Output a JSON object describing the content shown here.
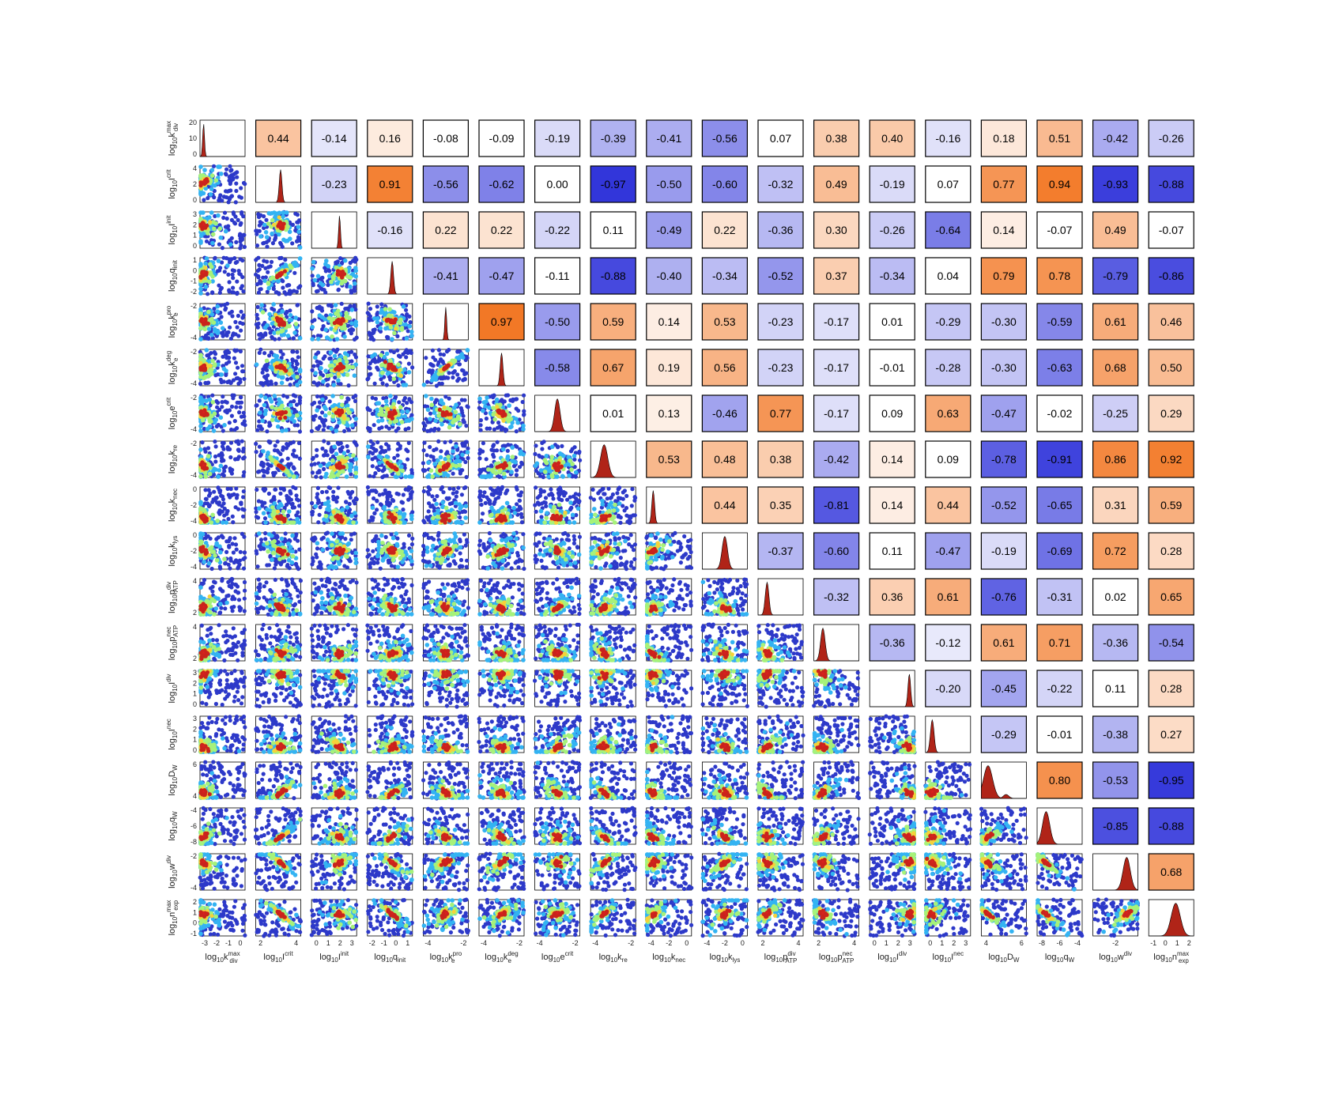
{
  "chart_data": {
    "type": "scatter",
    "title": "",
    "figure_kind": "corner plot: lower triangle = posterior scatter samples, diagonal = marginal density, upper triangle = correlation coefficient",
    "grid": false,
    "parameters": [
      {
        "base": "log",
        "sub": "10",
        "var": "k",
        "sup": "max",
        "sub2": "div",
        "ticks": [
          "-3",
          "-2",
          "-1",
          "0"
        ],
        "yticks": [
          "0",
          "10",
          "20"
        ],
        "range": [
          -3.5,
          0.3
        ],
        "yrange": [
          0,
          20
        ]
      },
      {
        "base": "log",
        "sub": "10",
        "var": "I",
        "sup": "crit",
        "sub2": "",
        "ticks": [
          "2",
          "4"
        ],
        "yticks": [
          "0",
          "2",
          "4"
        ],
        "range": [
          0,
          4.5
        ],
        "yrange": [
          0,
          4
        ]
      },
      {
        "base": "log",
        "sub": "10",
        "var": "I",
        "sup": "init",
        "sub2": "",
        "ticks": [
          "0",
          "1",
          "2",
          "3"
        ],
        "yticks": [
          "0",
          "1",
          "2",
          "3"
        ],
        "range": [
          -0.5,
          3.5
        ],
        "yrange": [
          -0.5,
          3
        ]
      },
      {
        "base": "log",
        "sub": "10",
        "var": "q",
        "sup": "",
        "sub2": "init",
        "ticks": [
          "-2",
          "-1",
          "0",
          "1"
        ],
        "yticks": [
          "-2",
          "-1",
          "0",
          "1"
        ],
        "range": [
          -2.3,
          1.5
        ],
        "yrange": [
          -2,
          1.5
        ]
      },
      {
        "base": "log",
        "sub": "10",
        "var": "k",
        "sup": "pro",
        "sub2": "e",
        "ticks": [
          "-4",
          "-2"
        ],
        "yticks": [
          "-4",
          "-2"
        ],
        "range": [
          -5.5,
          -0.5
        ],
        "yrange": [
          -5.5,
          -1
        ]
      },
      {
        "base": "log",
        "sub": "10",
        "var": "k",
        "sup": "deg",
        "sub2": "e",
        "ticks": [
          "-4",
          "-2"
        ],
        "yticks": [
          "-4",
          "-2"
        ],
        "range": [
          -5,
          -0.5
        ],
        "yrange": [
          -5,
          -1
        ]
      },
      {
        "base": "log",
        "sub": "10",
        "var": "e",
        "sup": "crit",
        "sub2": "",
        "ticks": [
          "-4",
          "-2"
        ],
        "yticks": [
          "-4",
          "-2"
        ],
        "range": [
          -5,
          -0.5
        ],
        "yrange": [
          -5,
          -1
        ]
      },
      {
        "base": "log",
        "sub": "10",
        "var": "k",
        "sup": "",
        "sub2": "re",
        "ticks": [
          "-4",
          "-2"
        ],
        "yticks": [
          "-4",
          "-2"
        ],
        "range": [
          -5.5,
          -0.5
        ],
        "yrange": [
          -5,
          -1
        ]
      },
      {
        "base": "log",
        "sub": "10",
        "var": "k",
        "sup": "",
        "sub2": "nec",
        "ticks": [
          "-4",
          "-2",
          "0"
        ],
        "yticks": [
          "-4",
          "-2",
          "0"
        ],
        "range": [
          -4.5,
          0.5
        ],
        "yrange": [
          -4,
          0.5
        ]
      },
      {
        "base": "log",
        "sub": "10",
        "var": "k",
        "sup": "",
        "sub2": "lys",
        "ticks": [
          "-4",
          "-2",
          "0"
        ],
        "yticks": [
          "-4",
          "-2",
          "0"
        ],
        "range": [
          -4.5,
          0.5
        ],
        "yrange": [
          -4,
          0.5
        ]
      },
      {
        "base": "log",
        "sub": "10",
        "var": "p",
        "sup": "div",
        "sub2": "ATP",
        "ticks": [
          "2",
          "4"
        ],
        "yticks": [
          "2",
          "4"
        ],
        "range": [
          0,
          5.5
        ],
        "yrange": [
          0.5,
          5
        ]
      },
      {
        "base": "log",
        "sub": "10",
        "var": "p",
        "sup": "nec",
        "sub2": "ATP",
        "ticks": [
          "2",
          "4"
        ],
        "yticks": [
          "2",
          "4"
        ],
        "range": [
          0,
          5
        ],
        "yrange": [
          0.5,
          5
        ]
      },
      {
        "base": "log",
        "sub": "10",
        "var": "I",
        "sup": "div",
        "sub2": "",
        "ticks": [
          "0",
          "1",
          "2",
          "3"
        ],
        "yticks": [
          "0",
          "1",
          "2",
          "3"
        ],
        "range": [
          -0.5,
          3.5
        ],
        "yrange": [
          -0.5,
          3.2
        ]
      },
      {
        "base": "log",
        "sub": "10",
        "var": "I",
        "sup": "nec",
        "sub2": "",
        "ticks": [
          "0",
          "1",
          "2",
          "3"
        ],
        "yticks": [
          "0",
          "1",
          "2",
          "3"
        ],
        "range": [
          -0.5,
          3.5
        ],
        "yrange": [
          -0.5,
          3.2
        ]
      },
      {
        "base": "log",
        "sub": "10",
        "var": "D",
        "sup": "",
        "sub2": "W",
        "ticks": [
          "4",
          "6"
        ],
        "yticks": [
          "4",
          "6"
        ],
        "range": [
          2.5,
          7.5
        ],
        "yrange": [
          2.5,
          7.5
        ]
      },
      {
        "base": "log",
        "sub": "10",
        "var": "q",
        "sup": "",
        "sub2": "W",
        "ticks": [
          "-8",
          "-6",
          "-4"
        ],
        "yticks": [
          "-8",
          "-6",
          "-4"
        ],
        "range": [
          -8,
          -4
        ],
        "yrange": [
          -8,
          -4
        ]
      },
      {
        "base": "log",
        "sub": "10",
        "var": "w",
        "sup": "div",
        "sub2": "",
        "ticks": [
          "-2"
        ],
        "yticks": [
          "-4",
          "-2"
        ],
        "range": [
          -4.2,
          0.2
        ],
        "yrange": [
          -4.5,
          -0.5
        ]
      },
      {
        "base": "log",
        "sub": "10",
        "var": "n",
        "sup": "max",
        "sub2": "exp",
        "ticks": [
          "-1",
          "0",
          "1",
          "2"
        ],
        "yticks": [
          "-1",
          "0",
          "1",
          "2"
        ],
        "range": [
          -1.2,
          2.5
        ],
        "yrange": [
          -1,
          2.5
        ]
      }
    ],
    "correlations": [
      [
        1,
        0.44,
        -0.14,
        0.16,
        -0.08,
        -0.09,
        -0.19,
        -0.39,
        -0.41,
        -0.56,
        0.07,
        0.38,
        0.4,
        -0.16,
        0.18,
        0.51,
        -0.42,
        -0.26
      ],
      [
        0.44,
        1,
        -0.23,
        0.91,
        -0.56,
        -0.62,
        0.0,
        -0.97,
        -0.5,
        -0.6,
        -0.32,
        0.49,
        -0.19,
        0.07,
        0.77,
        0.94,
        -0.93,
        -0.88
      ],
      [
        -0.14,
        -0.23,
        1,
        -0.16,
        0.22,
        0.22,
        -0.22,
        0.11,
        -0.49,
        0.22,
        -0.36,
        0.3,
        -0.26,
        -0.64,
        0.14,
        -0.07,
        0.49,
        -0.07
      ],
      [
        0.16,
        0.91,
        -0.16,
        1,
        -0.41,
        -0.47,
        -0.11,
        -0.88,
        -0.4,
        -0.34,
        -0.52,
        0.37,
        -0.34,
        0.04,
        0.79,
        0.78,
        -0.79,
        -0.86
      ],
      [
        -0.08,
        -0.56,
        0.22,
        -0.41,
        1,
        0.97,
        -0.5,
        0.59,
        0.14,
        0.53,
        -0.23,
        -0.17,
        0.01,
        -0.29,
        -0.3,
        -0.59,
        0.61,
        0.46
      ],
      [
        -0.09,
        -0.62,
        0.22,
        -0.47,
        0.97,
        1,
        -0.58,
        0.67,
        0.19,
        0.56,
        -0.23,
        -0.17,
        -0.01,
        -0.28,
        -0.3,
        -0.63,
        0.68,
        0.5
      ],
      [
        -0.19,
        0.0,
        -0.22,
        -0.11,
        -0.5,
        -0.58,
        1,
        0.01,
        0.13,
        -0.46,
        0.77,
        -0.17,
        0.09,
        0.63,
        -0.47,
        -0.02,
        -0.25,
        0.29
      ],
      [
        -0.39,
        -0.97,
        0.11,
        -0.88,
        0.59,
        0.67,
        0.01,
        1,
        0.53,
        0.48,
        0.38,
        -0.42,
        0.14,
        0.09,
        -0.78,
        -0.91,
        0.86,
        0.92
      ],
      [
        -0.41,
        -0.5,
        -0.49,
        -0.4,
        0.14,
        0.19,
        0.13,
        0.53,
        1,
        0.44,
        0.35,
        -0.81,
        0.14,
        0.44,
        -0.52,
        -0.65,
        0.31,
        0.59
      ],
      [
        -0.56,
        -0.6,
        0.22,
        -0.34,
        0.53,
        0.56,
        -0.46,
        0.48,
        0.44,
        1,
        -0.37,
        -0.6,
        0.11,
        -0.47,
        -0.19,
        -0.69,
        0.72,
        0.28
      ],
      [
        0.07,
        -0.32,
        -0.36,
        -0.52,
        -0.23,
        -0.23,
        0.77,
        0.38,
        0.35,
        -0.37,
        1,
        -0.32,
        0.36,
        0.61,
        -0.76,
        -0.31,
        0.02,
        0.65
      ],
      [
        0.38,
        0.49,
        0.3,
        0.37,
        -0.17,
        -0.17,
        -0.17,
        -0.42,
        -0.81,
        -0.6,
        -0.32,
        1,
        -0.36,
        -0.12,
        0.61,
        0.71,
        -0.36,
        -0.54
      ],
      [
        0.4,
        -0.19,
        -0.26,
        -0.34,
        0.01,
        -0.01,
        0.09,
        0.14,
        0.14,
        0.11,
        0.36,
        -0.36,
        1,
        -0.2,
        -0.45,
        -0.22,
        0.11,
        0.28
      ],
      [
        -0.16,
        0.07,
        -0.64,
        0.04,
        -0.29,
        -0.28,
        0.63,
        0.09,
        0.44,
        -0.47,
        0.61,
        -0.12,
        -0.2,
        1,
        -0.29,
        -0.01,
        -0.38,
        0.27
      ],
      [
        0.18,
        0.77,
        0.14,
        0.79,
        -0.3,
        -0.3,
        -0.47,
        -0.78,
        -0.52,
        -0.19,
        -0.76,
        0.61,
        -0.45,
        -0.29,
        1,
        0.8,
        -0.53,
        -0.95
      ],
      [
        0.51,
        0.94,
        -0.07,
        0.78,
        -0.59,
        -0.63,
        -0.02,
        -0.91,
        -0.65,
        -0.69,
        -0.31,
        0.71,
        -0.22,
        -0.01,
        0.8,
        1,
        -0.85,
        -0.88
      ],
      [
        -0.42,
        -0.93,
        0.49,
        -0.79,
        0.61,
        0.68,
        -0.25,
        0.86,
        0.31,
        0.72,
        0.02,
        -0.36,
        0.11,
        -0.38,
        -0.53,
        -0.85,
        1,
        0.68
      ],
      [
        -0.26,
        -0.88,
        -0.07,
        -0.86,
        0.46,
        0.5,
        0.29,
        0.92,
        0.59,
        0.28,
        0.65,
        -0.54,
        0.28,
        0.27,
        -0.95,
        -0.88,
        0.68,
        1
      ]
    ],
    "marginal_peaks": [
      0.08,
      0.55,
      0.62,
      0.55,
      0.5,
      0.5,
      0.5,
      0.3,
      0.15,
      0.5,
      0.2,
      0.2,
      0.88,
      0.15,
      0.15,
      0.2,
      0.75,
      0.6
    ],
    "marginal_widths": [
      0.02,
      0.03,
      0.02,
      0.03,
      0.02,
      0.03,
      0.06,
      0.08,
      0.03,
      0.06,
      0.04,
      0.05,
      0.03,
      0.04,
      0.1,
      0.08,
      0.08,
      0.1
    ],
    "marker": {
      "symbol": "*",
      "color": "#e02020",
      "meaning": "best-fit point"
    },
    "colors": {
      "scatter_dark_blue": "#2d39c9",
      "scatter_light_blue": "#33b3f2",
      "scatter_green": "#a6f27a",
      "scatter_yellow": "#f5d23a",
      "scatter_orange": "#f29a2e",
      "scatter_red": "#c9231c",
      "density_fill": "#b02418",
      "corr_positive_max": "#f2741f",
      "corr_negative_max": "#2b2fd9",
      "corr_zero": "#ffffff"
    }
  }
}
